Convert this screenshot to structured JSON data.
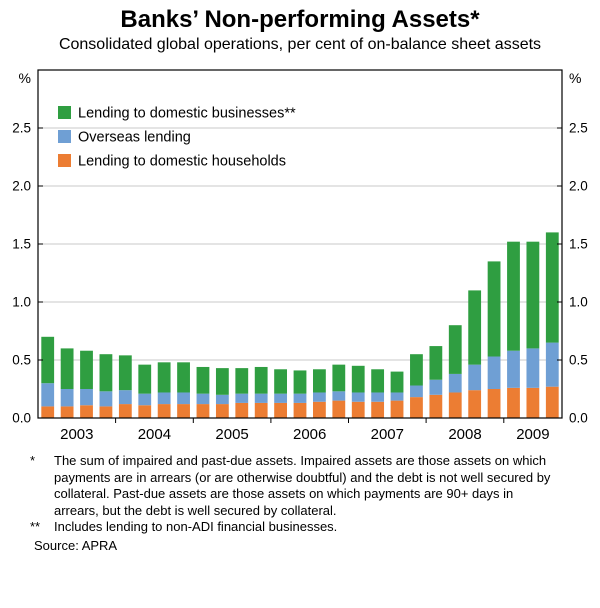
{
  "header": {
    "title": "Banks’ Non-performing Assets*",
    "subtitle": "Consolidated global operations, per cent of on-balance sheet assets"
  },
  "chart_data": {
    "type": "bar",
    "stacked": true,
    "title": "Banks’ Non-performing Assets*",
    "subtitle": "Consolidated global operations, per cent of on-balance sheet assets",
    "unit": "%",
    "ylabel_left": "%",
    "ylabel_right": "%",
    "ylim": [
      0,
      3.0
    ],
    "yticks": [
      0.0,
      0.5,
      1.0,
      1.5,
      2.0,
      2.5
    ],
    "grid": true,
    "legend_position": "top-left",
    "x_year_labels": [
      "2003",
      "2004",
      "2005",
      "2006",
      "2007",
      "2008",
      "2009"
    ],
    "quarters": [
      "2003 Q1",
      "2003 Q2",
      "2003 Q3",
      "2003 Q4",
      "2004 Q1",
      "2004 Q2",
      "2004 Q3",
      "2004 Q4",
      "2005 Q1",
      "2005 Q2",
      "2005 Q3",
      "2005 Q4",
      "2006 Q1",
      "2006 Q2",
      "2006 Q3",
      "2006 Q4",
      "2007 Q1",
      "2007 Q2",
      "2007 Q3",
      "2007 Q4",
      "2008 Q1",
      "2008 Q2",
      "2008 Q3",
      "2008 Q4",
      "2009 Q1",
      "2009 Q2",
      "2009 Q3"
    ],
    "stack_order_bottom_to_top": [
      "Lending to domestic households",
      "Overseas lending",
      "Lending to domestic businesses**"
    ],
    "series": [
      {
        "name": "Lending to domestic businesses**",
        "color": "#2f9e41",
        "values": [
          0.4,
          0.35,
          0.33,
          0.32,
          0.3,
          0.25,
          0.26,
          0.26,
          0.23,
          0.23,
          0.22,
          0.23,
          0.21,
          0.2,
          0.2,
          0.23,
          0.23,
          0.2,
          0.18,
          0.27,
          0.29,
          0.42,
          0.64,
          0.82,
          0.94,
          0.92,
          0.95
        ]
      },
      {
        "name": "Overseas lending",
        "color": "#6f9fd4",
        "values": [
          0.2,
          0.15,
          0.14,
          0.13,
          0.12,
          0.1,
          0.1,
          0.1,
          0.09,
          0.08,
          0.08,
          0.08,
          0.08,
          0.08,
          0.08,
          0.08,
          0.08,
          0.08,
          0.07,
          0.1,
          0.13,
          0.16,
          0.22,
          0.28,
          0.32,
          0.34,
          0.38
        ]
      },
      {
        "name": "Lending to domestic households",
        "color": "#ec7d33",
        "values": [
          0.1,
          0.1,
          0.11,
          0.1,
          0.12,
          0.11,
          0.12,
          0.12,
          0.12,
          0.12,
          0.13,
          0.13,
          0.13,
          0.13,
          0.14,
          0.15,
          0.14,
          0.14,
          0.15,
          0.18,
          0.2,
          0.22,
          0.24,
          0.25,
          0.26,
          0.26,
          0.27
        ]
      }
    ]
  },
  "footnotes": [
    {
      "marker": "*",
      "text": "The sum of impaired and past-due assets. Impaired assets are those assets on which payments are in arrears (or are otherwise doubtful) and the debt is not well secured by collateral. Past-due assets are those assets on which payments are 90+ days in arrears, but the debt is well secured by collateral."
    },
    {
      "marker": "**",
      "text": "Includes lending to non-ADI financial businesses."
    }
  ],
  "source": "Source: APRA"
}
